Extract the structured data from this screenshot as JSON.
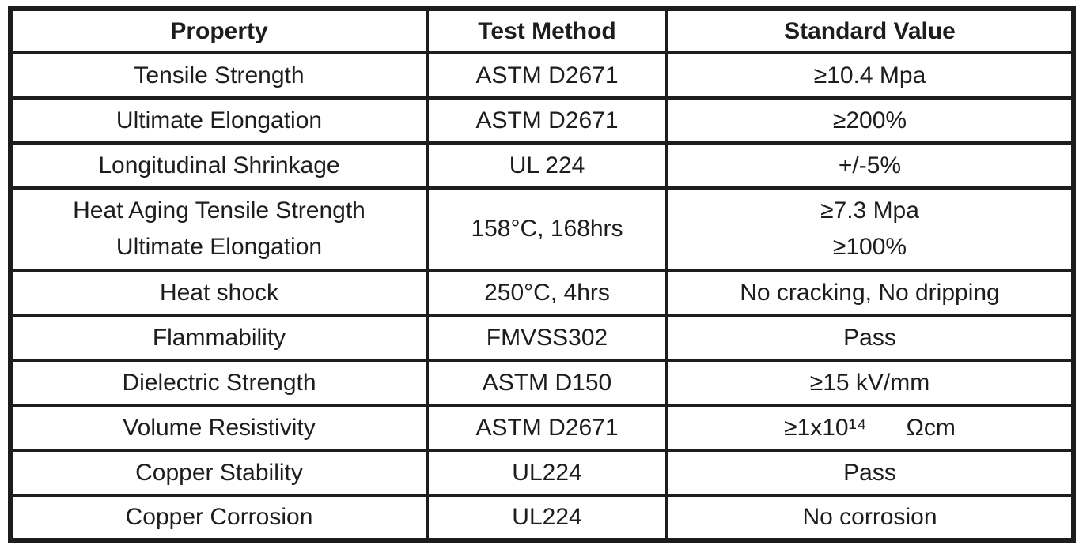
{
  "colors": {
    "background": "#ffffff",
    "border": "#1d1d1b",
    "text": "#1d1d1b"
  },
  "table": {
    "headers": [
      "Property",
      "Test Method",
      "Standard Value"
    ],
    "rows": [
      {
        "property": [
          "Tensile Strength"
        ],
        "test_method": [
          "ASTM D2671"
        ],
        "standard_value": [
          "≥10.4 Mpa"
        ],
        "tall": false
      },
      {
        "property": [
          "Ultimate Elongation"
        ],
        "test_method": [
          "ASTM D2671"
        ],
        "standard_value": [
          "≥200%"
        ],
        "tall": false
      },
      {
        "property": [
          "Longitudinal Shrinkage"
        ],
        "test_method": [
          "UL 224"
        ],
        "standard_value": [
          "+/-5%"
        ],
        "tall": false
      },
      {
        "property": [
          "Heat Aging Tensile Strength",
          "Ultimate Elongation"
        ],
        "test_method": [
          "158°C, 168hrs"
        ],
        "standard_value": [
          "≥7.3 Mpa",
          "≥100%"
        ],
        "tall": true
      },
      {
        "property": [
          "Heat shock"
        ],
        "test_method": [
          "250°C, 4hrs"
        ],
        "standard_value": [
          "No cracking, No dripping"
        ],
        "tall": false
      },
      {
        "property": [
          "Flammability"
        ],
        "test_method": [
          "FMVSS302"
        ],
        "standard_value": [
          "Pass"
        ],
        "tall": false
      },
      {
        "property": [
          "Dielectric Strength"
        ],
        "test_method": [
          "ASTM D150"
        ],
        "standard_value": [
          "≥15 kV/mm"
        ],
        "tall": false
      },
      {
        "property": [
          "Volume Resistivity"
        ],
        "test_method": [
          "ASTM D2671"
        ],
        "standard_value": [
          "≥1x10¹⁴      Ωcm"
        ],
        "tall": false
      },
      {
        "property": [
          "Copper Stability"
        ],
        "test_method": [
          "UL224"
        ],
        "standard_value": [
          "Pass"
        ],
        "tall": false
      },
      {
        "property": [
          "Copper Corrosion"
        ],
        "test_method": [
          "UL224"
        ],
        "standard_value": [
          "No corrosion"
        ],
        "tall": false
      }
    ]
  }
}
